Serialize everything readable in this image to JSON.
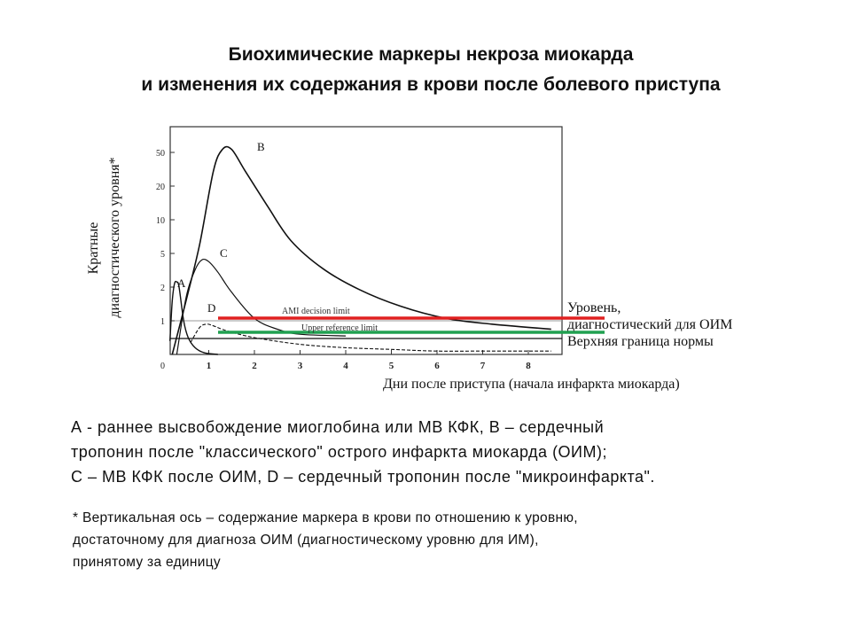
{
  "title": {
    "line1": "Биохимические маркеры некроза миокарда",
    "line2": "и изменения их содержания в крови после болевого приступа"
  },
  "chart_data": {
    "type": "line",
    "ylabel": "Кратные диагностического уровня*",
    "xlabel": "Дни после приступа (начала инфаркта миокарда)",
    "x_ticks": [
      0,
      1,
      2,
      3,
      4,
      5,
      6,
      7,
      8
    ],
    "y_ticks": [
      "0",
      "1",
      "2",
      "5",
      "10",
      "20",
      "50"
    ],
    "y_scale": "log-like",
    "xlim": [
      0,
      9
    ],
    "series": [
      {
        "name": "A",
        "x": [
          0.15,
          0.2,
          0.25,
          0.3,
          0.35,
          0.45,
          0.55,
          0.7,
          0.9,
          1.2
        ],
        "y": [
          0.4,
          1.5,
          2.2,
          2.3,
          2.0,
          1.0,
          0.5,
          0.2,
          0.05,
          0
        ]
      },
      {
        "name": "B",
        "x": [
          0.2,
          0.5,
          0.8,
          1.1,
          1.3,
          1.5,
          1.8,
          2.3,
          2.8,
          3.5,
          4.3,
          5.2,
          6.2,
          7.2,
          8.5
        ],
        "y": [
          0,
          1.5,
          6,
          30,
          55,
          55,
          30,
          13,
          6.5,
          3.3,
          1.9,
          1.35,
          1.05,
          0.9,
          0.75
        ]
      },
      {
        "name": "C",
        "x": [
          0.3,
          0.5,
          0.7,
          0.85,
          1.0,
          1.2,
          1.5,
          2.0,
          2.5,
          3.0,
          4.0
        ],
        "y": [
          0,
          1.6,
          3.2,
          4.2,
          4.0,
          3.0,
          1.8,
          1.05,
          0.75,
          0.6,
          0.55
        ]
      },
      {
        "name": "D",
        "x": [
          0.6,
          0.8,
          0.95,
          1.1,
          1.4,
          2.0,
          3.0,
          4.0,
          5.0,
          6.0,
          7.0,
          8.5
        ],
        "y": [
          0.35,
          0.8,
          0.9,
          0.85,
          0.7,
          0.5,
          0.3,
          0.2,
          0.15,
          0.1,
          0.1,
          0.1
        ]
      }
    ],
    "reference_lines": [
      {
        "label": "AMI decision limit",
        "y": 1.0,
        "color": "#e02020"
      },
      {
        "label": "Upper reference limit",
        "y": 0.6,
        "color": "#20a050"
      }
    ],
    "annotations": {
      "red_line": "Уровень, диагностический для ОИМ",
      "green_line": "Верхняя граница нормы"
    }
  },
  "caption": {
    "line1": "А -  раннее высвобождение миоглобина или МВ КФК, В –  сердечный",
    "line2": "тропонин после \"классического\"  острого инфаркта миокарда (ОИМ);",
    "line3": "С – МВ КФК после ОИМ, D – сердечный тропонин после \"микроинфаркта\"."
  },
  "note": {
    "line1": "* Вертикальная ось – содержание маркера в крови по отношению к уровню,",
    "line2": "достаточному для диагноза ОИМ (диагностическому уровню для ИМ),",
    "line3": "принятому за единицу"
  }
}
